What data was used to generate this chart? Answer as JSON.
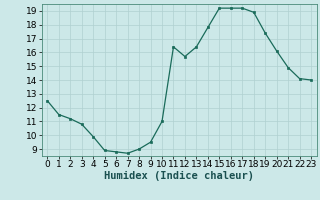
{
  "x": [
    0,
    1,
    2,
    3,
    4,
    5,
    6,
    7,
    8,
    9,
    10,
    11,
    12,
    13,
    14,
    15,
    16,
    17,
    18,
    19,
    20,
    21,
    22,
    23
  ],
  "y": [
    12.5,
    11.5,
    11.2,
    10.8,
    9.9,
    8.9,
    8.8,
    8.7,
    9.0,
    9.5,
    11.0,
    16.4,
    15.7,
    16.4,
    17.8,
    19.2,
    19.2,
    19.2,
    18.9,
    17.4,
    16.1,
    14.9,
    14.1,
    14.0
  ],
  "line_color": "#1a6b5a",
  "marker_color": "#1a6b5a",
  "bg_color": "#cce8e8",
  "grid_color": "#b0d0d0",
  "xlabel": "Humidex (Indice chaleur)",
  "xlim": [
    -0.5,
    23.5
  ],
  "ylim": [
    8.5,
    19.5
  ],
  "yticks": [
    9,
    10,
    11,
    12,
    13,
    14,
    15,
    16,
    17,
    18,
    19
  ],
  "xticks": [
    0,
    1,
    2,
    3,
    4,
    5,
    6,
    7,
    8,
    9,
    10,
    11,
    12,
    13,
    14,
    15,
    16,
    17,
    18,
    19,
    20,
    21,
    22,
    23
  ],
  "xlabel_fontsize": 7.5,
  "tick_fontsize": 6.5
}
